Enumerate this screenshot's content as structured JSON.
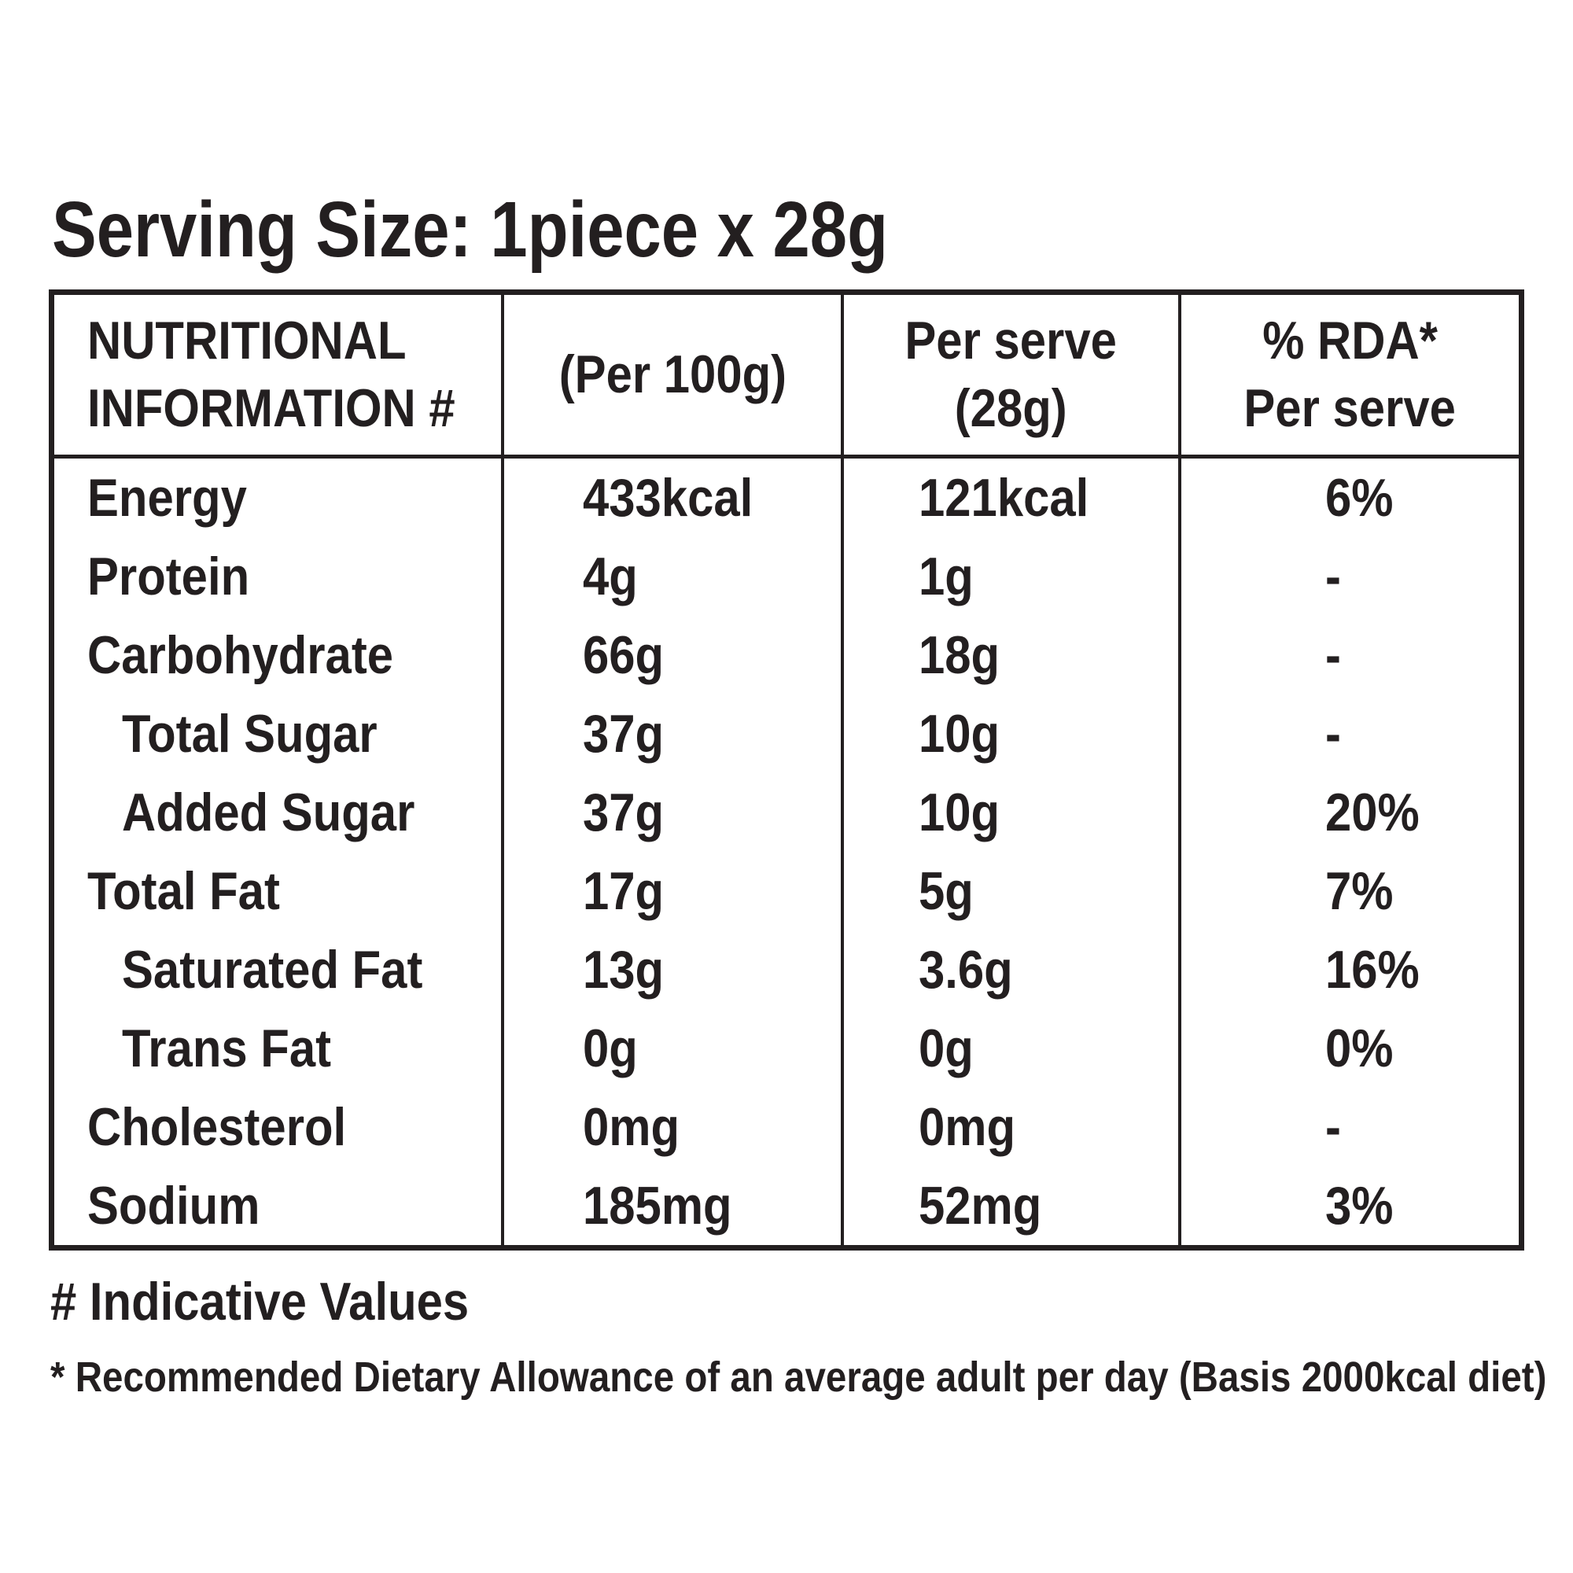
{
  "colors": {
    "text": "#231f20",
    "border": "#231f20",
    "background": "#ffffff"
  },
  "title": "Serving Size: 1piece x 28g",
  "table": {
    "header": {
      "col1_line1": "NUTRITIONAL",
      "col1_line2": "INFORMATION #",
      "col2": "(Per 100g)",
      "col3_line1": "Per serve",
      "col3_line2": "(28g)",
      "col4_line1": "% RDA*",
      "col4_line2": "Per serve"
    },
    "rows": [
      {
        "label": "Energy",
        "per_100g": "433kcal",
        "per_serve": "121kcal",
        "rda": "6%"
      },
      {
        "label": "Protein",
        "per_100g": "4g",
        "per_serve": "1g",
        "rda": "-"
      },
      {
        "label": "Carbohydrate",
        "per_100g": "66g",
        "per_serve": "18g",
        "rda": "-"
      },
      {
        "label": "Total Sugar",
        "per_100g": "37g",
        "per_serve": "10g",
        "rda": "-"
      },
      {
        "label": "Added Sugar",
        "per_100g": "37g",
        "per_serve": "10g",
        "rda": "20%"
      },
      {
        "label": "Total Fat",
        "per_100g": "17g",
        "per_serve": "5g",
        "rda": "7%"
      },
      {
        "label": "Saturated Fat",
        "per_100g": "13g",
        "per_serve": "3.6g",
        "rda": "16%"
      },
      {
        "label": "Trans Fat",
        "per_100g": "0g",
        "per_serve": "0g",
        "rda": "0%"
      },
      {
        "label": "Cholesterol",
        "per_100g": "0mg",
        "per_serve": "0mg",
        "rda": "-"
      },
      {
        "label": "Sodium",
        "per_100g": "185mg",
        "per_serve": "52mg",
        "rda": "3%"
      }
    ]
  },
  "footnotes": {
    "indicative": "# Indicative Values",
    "rda": "* Recommended Dietary Allowance of an average adult per day (Basis 2000kcal diet)"
  }
}
